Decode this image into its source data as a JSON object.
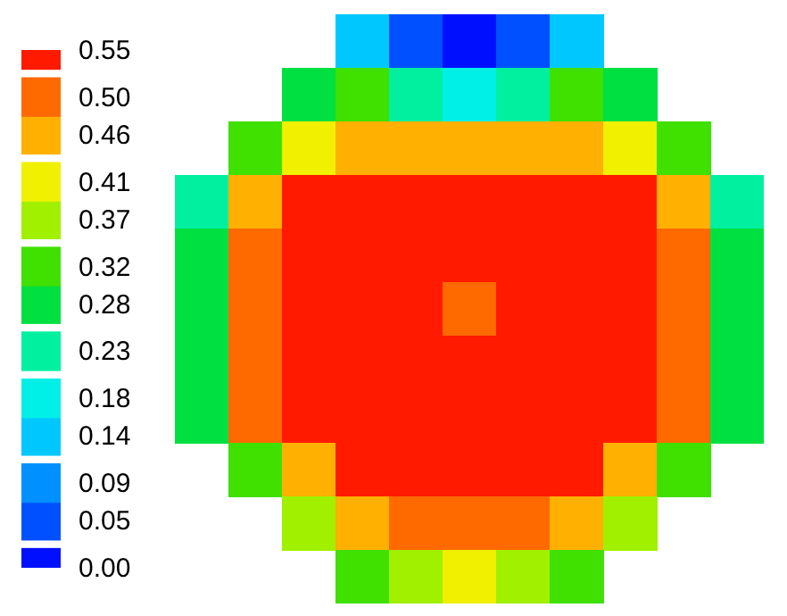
{
  "chart_data": {
    "type": "heatmap",
    "categories": [
      null,
      null,
      null,
      null,
      null,
      null,
      null,
      null,
      null,
      null,
      null
    ],
    "y_categories": [
      null,
      null,
      null,
      null,
      null,
      null,
      null,
      null,
      null,
      null,
      null
    ],
    "cells": [
      [
        null,
        null,
        null,
        0.14,
        0.05,
        0,
        0.05,
        0.14,
        null,
        null,
        null
      ],
      [
        null,
        null,
        0.28,
        0.32,
        0.23,
        0.18,
        0.23,
        0.32,
        0.28,
        null,
        null
      ],
      [
        null,
        0.32,
        0.41,
        0.46,
        0.46,
        0.46,
        0.46,
        0.46,
        0.41,
        0.32,
        null
      ],
      [
        0.23,
        0.46,
        0.55,
        0.55,
        0.55,
        0.55,
        0.55,
        0.55,
        0.55,
        0.46,
        0.23
      ],
      [
        0.28,
        0.5,
        0.55,
        0.55,
        0.55,
        0.55,
        0.55,
        0.55,
        0.55,
        0.5,
        0.28
      ],
      [
        0.28,
        0.5,
        0.55,
        0.55,
        0.55,
        0.5,
        0.55,
        0.55,
        0.55,
        0.5,
        0.28
      ],
      [
        0.28,
        0.5,
        0.55,
        0.55,
        0.55,
        0.55,
        0.55,
        0.55,
        0.55,
        0.5,
        0.28
      ],
      [
        0.28,
        0.5,
        0.55,
        0.55,
        0.55,
        0.55,
        0.55,
        0.55,
        0.55,
        0.5,
        0.28
      ],
      [
        null,
        0.32,
        0.46,
        0.55,
        0.55,
        0.55,
        0.55,
        0.55,
        0.46,
        0.32,
        null
      ],
      [
        null,
        null,
        0.37,
        0.46,
        0.5,
        0.5,
        0.5,
        0.46,
        0.37,
        null,
        null
      ],
      [
        null,
        null,
        null,
        0.32,
        0.37,
        0.41,
        0.37,
        0.32,
        null,
        null,
        null
      ]
    ],
    "clim": [
      0,
      0.55
    ],
    "cticks": [
      {
        "value": 0,
        "label": "0.00"
      },
      0.05,
      0.09,
      0.14,
      0.18,
      0.23,
      0.28,
      0.32,
      0.37,
      0.41,
      {
        "value": 0.46,
        "label": "0.46"
      },
      {
        "value": 0.5,
        "label": "0.50"
      },
      0.55
    ],
    "tick_labels": false
  }
}
